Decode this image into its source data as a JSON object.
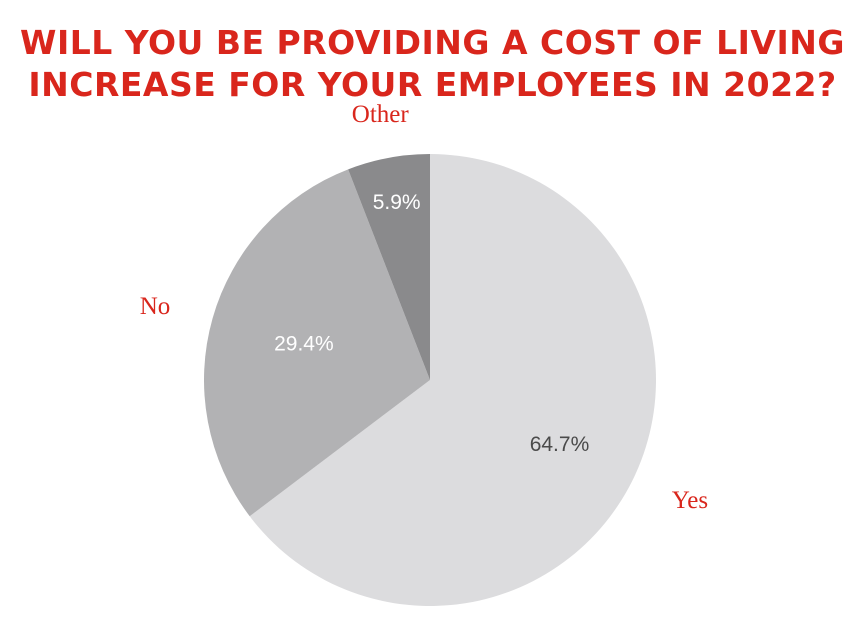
{
  "chart_data": {
    "type": "pie",
    "title_lines": [
      "WILL YOU BE PROVIDING A COST OF LIVING",
      "INCREASE FOR YOUR EMPLOYEES IN 2022?"
    ],
    "slices": [
      {
        "label": "Yes",
        "value": 64.7,
        "value_label": "64.7%",
        "color": "#dcdcde",
        "value_label_color": "#4a4a4a"
      },
      {
        "label": "No",
        "value": 29.4,
        "value_label": "29.4%",
        "color": "#b2b2b4",
        "value_label_color": "#ffffff"
      },
      {
        "label": "Other",
        "value": 5.9,
        "value_label": "5.9%",
        "color": "#8a8a8c",
        "value_label_color": "#ffffff"
      }
    ],
    "start_angle": "12 o'clock",
    "direction": "clockwise",
    "category_label_color": "#d9261c",
    "title_color": "#d9261c",
    "legend": "none"
  }
}
